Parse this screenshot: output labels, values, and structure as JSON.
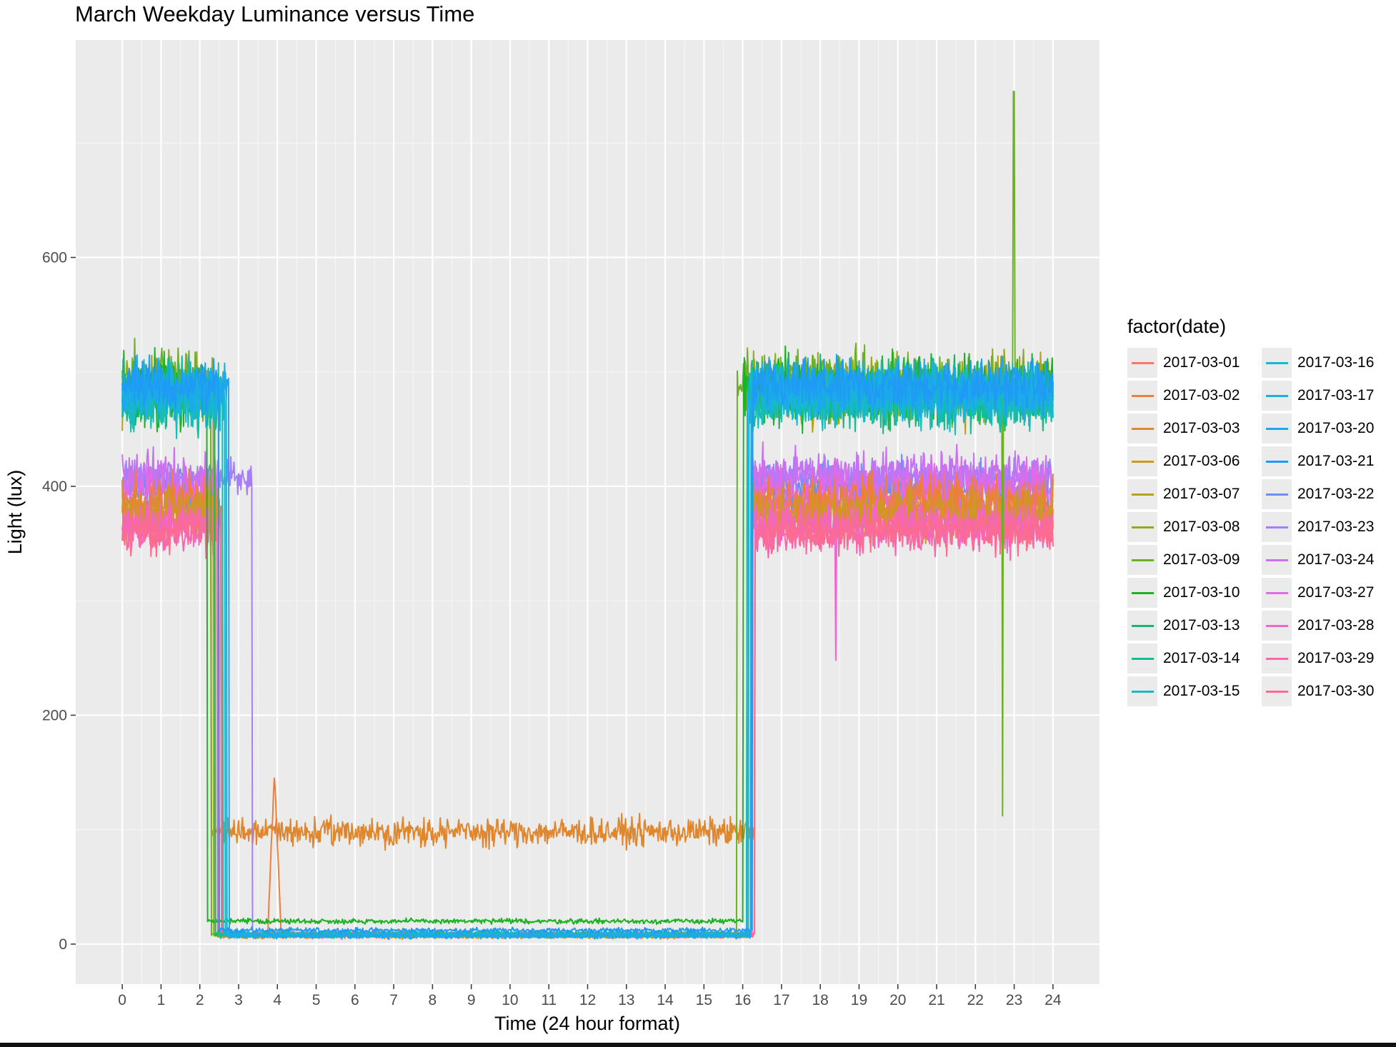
{
  "chart_data": {
    "type": "line",
    "title": "March Weekday Luminance versus Time",
    "xlabel": "Time (24 hour format)",
    "ylabel": "Light (lux)",
    "xlim": [
      -1.2,
      25.2
    ],
    "ylim": [
      -35,
      790
    ],
    "xticks": [
      0,
      1,
      2,
      3,
      4,
      5,
      6,
      7,
      8,
      9,
      10,
      11,
      12,
      13,
      14,
      15,
      16,
      17,
      18,
      19,
      20,
      21,
      22,
      23,
      24
    ],
    "yticks": [
      0,
      200,
      400,
      600
    ],
    "grid": true,
    "legend_title": "factor(date)",
    "legend_position": "right",
    "series": [
      {
        "name": "2017-03-01",
        "color": "#F8766D",
        "group": "ambient",
        "base_on": 375,
        "noise": 18,
        "off_hour": 2.55,
        "on_hour": 16.25,
        "night": 8
      },
      {
        "name": "2017-03-02",
        "color": "#EE7F3A",
        "group": "ambient",
        "base_on": 385,
        "noise": 20,
        "off_hour": 2.45,
        "on_hour": 16.2,
        "night": 8,
        "night_bump": {
          "start": 3.75,
          "end": 4.1,
          "peak": 150
        }
      },
      {
        "name": "2017-03-03",
        "color": "#E0872E",
        "group": "dim",
        "base_on": 380,
        "noise": 18,
        "off_hour": 2.3,
        "on_hour": 16.3,
        "night": 98,
        "night_noise": 10
      },
      {
        "name": "2017-03-06",
        "color": "#CE9726",
        "group": "ambient",
        "base_on": 378,
        "noise": 18,
        "off_hour": 2.6,
        "on_hour": 16.2,
        "night": 7
      },
      {
        "name": "2017-03-07",
        "color": "#B4A11E",
        "group": "bright",
        "base_on": 482,
        "noise": 22,
        "off_hour": 2.35,
        "on_hour": 16.15,
        "night": 8
      },
      {
        "name": "2017-03-08",
        "color": "#95A81E",
        "group": "bright",
        "base_on": 488,
        "noise": 22,
        "off_hour": 2.4,
        "on_hour": 16.1,
        "night": 8
      },
      {
        "name": "2017-03-09",
        "color": "#6CB125",
        "group": "bright",
        "base_on": 490,
        "noise": 24,
        "off_hour": 2.3,
        "on_hour": 15.85,
        "night": 8,
        "spike": {
          "hour": 22.99,
          "value": 745
        },
        "dip": {
          "hour": 22.7,
          "value": 112
        }
      },
      {
        "name": "2017-03-10",
        "color": "#1DB224",
        "group": "bright",
        "base_on": 485,
        "noise": 24,
        "off_hour": 2.2,
        "on_hour": 16.0,
        "night": 20
      },
      {
        "name": "2017-03-13",
        "color": "#12B86F",
        "group": "bright",
        "base_on": 482,
        "noise": 22,
        "off_hour": 2.4,
        "on_hour": 16.1,
        "night": 9
      },
      {
        "name": "2017-03-14",
        "color": "#14BD99",
        "group": "bright",
        "base_on": 478,
        "noise": 22,
        "off_hour": 2.5,
        "on_hour": 16.2,
        "night": 8
      },
      {
        "name": "2017-03-15",
        "color": "#17BDB6",
        "group": "bright",
        "base_on": 476,
        "noise": 22,
        "off_hour": 2.6,
        "on_hour": 16.2,
        "night": 8
      },
      {
        "name": "2017-03-16",
        "color": "#16B8CD",
        "group": "bright",
        "base_on": 480,
        "noise": 20,
        "off_hour": 2.65,
        "on_hour": 16.15,
        "night": 9
      },
      {
        "name": "2017-03-17",
        "color": "#1BB1DF",
        "group": "bright",
        "base_on": 483,
        "noise": 20,
        "off_hour": 2.7,
        "on_hour": 16.1,
        "night": 8
      },
      {
        "name": "2017-03-20",
        "color": "#1BA8EC",
        "group": "bright",
        "base_on": 485,
        "noise": 18,
        "off_hour": 2.75,
        "on_hour": 16.2,
        "night": 7
      },
      {
        "name": "2017-03-21",
        "color": "#1F9BF5",
        "group": "bright",
        "base_on": 488,
        "noise": 18,
        "off_hour": 2.5,
        "on_hour": 16.25,
        "night": 12
      },
      {
        "name": "2017-03-22",
        "color": "#6D8EF9",
        "group": "mid",
        "base_on": 400,
        "noise": 18,
        "off_hour": 2.5,
        "on_hour": 16.2,
        "night": 8
      },
      {
        "name": "2017-03-23",
        "color": "#A57FF7",
        "group": "mid",
        "base_on": 408,
        "noise": 12,
        "off_hour": 3.35,
        "on_hour": 16.2,
        "night": 8
      },
      {
        "name": "2017-03-24",
        "color": "#C872F2",
        "group": "mid",
        "base_on": 410,
        "noise": 18,
        "off_hour": 2.5,
        "on_hour": 16.2,
        "night": 8
      },
      {
        "name": "2017-03-27",
        "color": "#E36AE4",
        "group": "mid",
        "base_on": 395,
        "noise": 18,
        "off_hour": 2.5,
        "on_hour": 16.25,
        "night": 9
      },
      {
        "name": "2017-03-28",
        "color": "#EF67CA",
        "group": "ambient",
        "base_on": 365,
        "noise": 16,
        "off_hour": 2.5,
        "on_hour": 16.25,
        "night": 8,
        "dip": {
          "hour": 18.4,
          "value": 248
        }
      },
      {
        "name": "2017-03-29",
        "color": "#F767AE",
        "group": "ambient",
        "base_on": 362,
        "noise": 16,
        "off_hour": 2.45,
        "on_hour": 16.3,
        "night": 9
      },
      {
        "name": "2017-03-30",
        "color": "#FB6C90",
        "group": "ambient",
        "base_on": 360,
        "noise": 14,
        "off_hour": 2.55,
        "on_hour": 16.3,
        "night": 8
      }
    ]
  }
}
